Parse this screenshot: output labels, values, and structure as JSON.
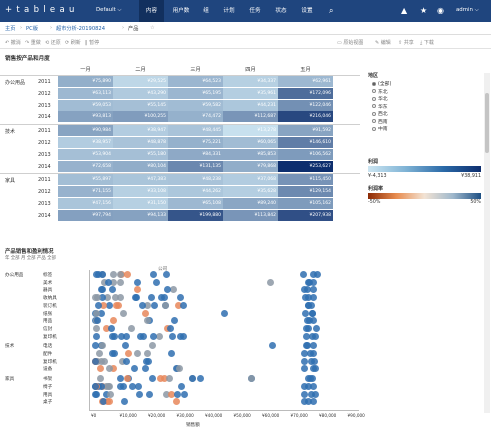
{
  "app": {
    "brand": "+ t a b l e a u",
    "site": "Default",
    "user": "admin"
  },
  "nav": [
    "内容",
    "用户数",
    "组",
    "计划",
    "任务",
    "状态",
    "设置"
  ],
  "breadcrumb": [
    "主页",
    "PC版",
    "超市分析-20190824",
    "产品"
  ],
  "toolbar": {
    "undo": "撤消",
    "redo": "重做",
    "revert": "还原",
    "refresh": "刷新",
    "pause": "暂停",
    "custom": "原始视图",
    "edit": "编辑",
    "share": "共享",
    "download": "下载"
  },
  "heatmap": {
    "title": "销售按产品和月度",
    "months": [
      "一月",
      "二月",
      "三月",
      "四月",
      "五月"
    ],
    "categories": [
      "办公用品",
      "技术",
      "家具"
    ],
    "years": [
      "2011",
      "2012",
      "2013",
      "2014"
    ],
    "rows": [
      [
        "¥75,890",
        "¥29,525",
        "¥64,523",
        "¥34,337",
        "¥62,961"
      ],
      [
        "¥63,113",
        "¥43,290",
        "¥65,195",
        "¥35,961",
        "¥172,096"
      ],
      [
        "¥59,053",
        "¥55,145",
        "¥59,582",
        "¥44,231",
        "¥122,046"
      ],
      [
        "¥93,813",
        "¥100,255",
        "¥74,472",
        "¥112,687",
        "¥216,046"
      ],
      [
        "¥90,984",
        "¥38,947",
        "¥48,445",
        "¥13,278",
        "¥91,592"
      ],
      [
        "¥38,957",
        "¥48,878",
        "¥75,221",
        "¥60,065",
        "¥146,610"
      ],
      [
        "¥53,904",
        "¥55,180",
        "¥84,331",
        "¥85,853",
        "¥106,562"
      ],
      [
        "¥72,658",
        "¥80,104",
        "¥131,135",
        "¥79,868",
        "¥253,627"
      ],
      [
        "¥55,897",
        "¥47,383",
        "¥48,238",
        "¥37,068",
        "¥115,450"
      ],
      [
        "¥71,155",
        "¥33,108",
        "¥44,262",
        "¥35,628",
        "¥129,154"
      ],
      [
        "¥47,156",
        "¥31,150",
        "¥65,108",
        "¥89,240",
        "¥105,162"
      ],
      [
        "¥97,794",
        "¥94,133",
        "¥199,880",
        "¥113,842",
        "¥207,938"
      ]
    ],
    "shade": [
      [
        0.3,
        0.08,
        0.26,
        0.12,
        0.25
      ],
      [
        0.25,
        0.15,
        0.26,
        0.13,
        0.66
      ],
      [
        0.23,
        0.21,
        0.23,
        0.17,
        0.47
      ],
      [
        0.37,
        0.4,
        0.29,
        0.44,
        0.86
      ],
      [
        0.36,
        0.14,
        0.19,
        0.03,
        0.36
      ],
      [
        0.14,
        0.19,
        0.29,
        0.23,
        0.57
      ],
      [
        0.21,
        0.21,
        0.33,
        0.33,
        0.41
      ],
      [
        0.28,
        0.31,
        0.51,
        0.31,
        1.0
      ],
      [
        0.22,
        0.18,
        0.19,
        0.14,
        0.45
      ],
      [
        0.28,
        0.12,
        0.17,
        0.13,
        0.5
      ],
      [
        0.18,
        0.12,
        0.25,
        0.35,
        0.41
      ],
      [
        0.38,
        0.37,
        0.79,
        0.44,
        0.82
      ]
    ]
  },
  "legend": {
    "region_title": "地区",
    "regions": [
      "(全部)",
      "东北",
      "华北",
      "华东",
      "西北",
      "西南",
      "中南"
    ],
    "sales_title": "利润",
    "sales_min": "¥-4,313",
    "sales_max": "¥38,911",
    "profit_title": "利润率",
    "profit_min": "-50%",
    "profit_max": "50%"
  },
  "dotplot": {
    "title": "产品销售和盈利情况",
    "subtitle": "年  全部  月  全部  产品  全部",
    "group_label": "公司",
    "categories": [
      {
        "name": "办公用品",
        "items": [
          "标签",
          "美术",
          "器具",
          "收纳具",
          "装订机",
          "纸张",
          "用品",
          "信封",
          "复印机"
        ]
      },
      {
        "name": "技术",
        "items": [
          "电话",
          "配件",
          "复印机",
          "设备"
        ]
      },
      {
        "name": "家具",
        "items": [
          "书架",
          "椅子",
          "用具",
          "桌子"
        ]
      }
    ],
    "xticks": [
      "¥0",
      "¥10,000",
      "¥20,000",
      "¥30,000",
      "¥40,000",
      "¥50,000",
      "¥60,000",
      "¥70,000",
      "¥80,000",
      "¥90,000"
    ],
    "xlabel": "销售额"
  },
  "colors": {
    "blue": "#2f6fb0",
    "orange": "#e8875a",
    "grey": "#8c98a4"
  }
}
